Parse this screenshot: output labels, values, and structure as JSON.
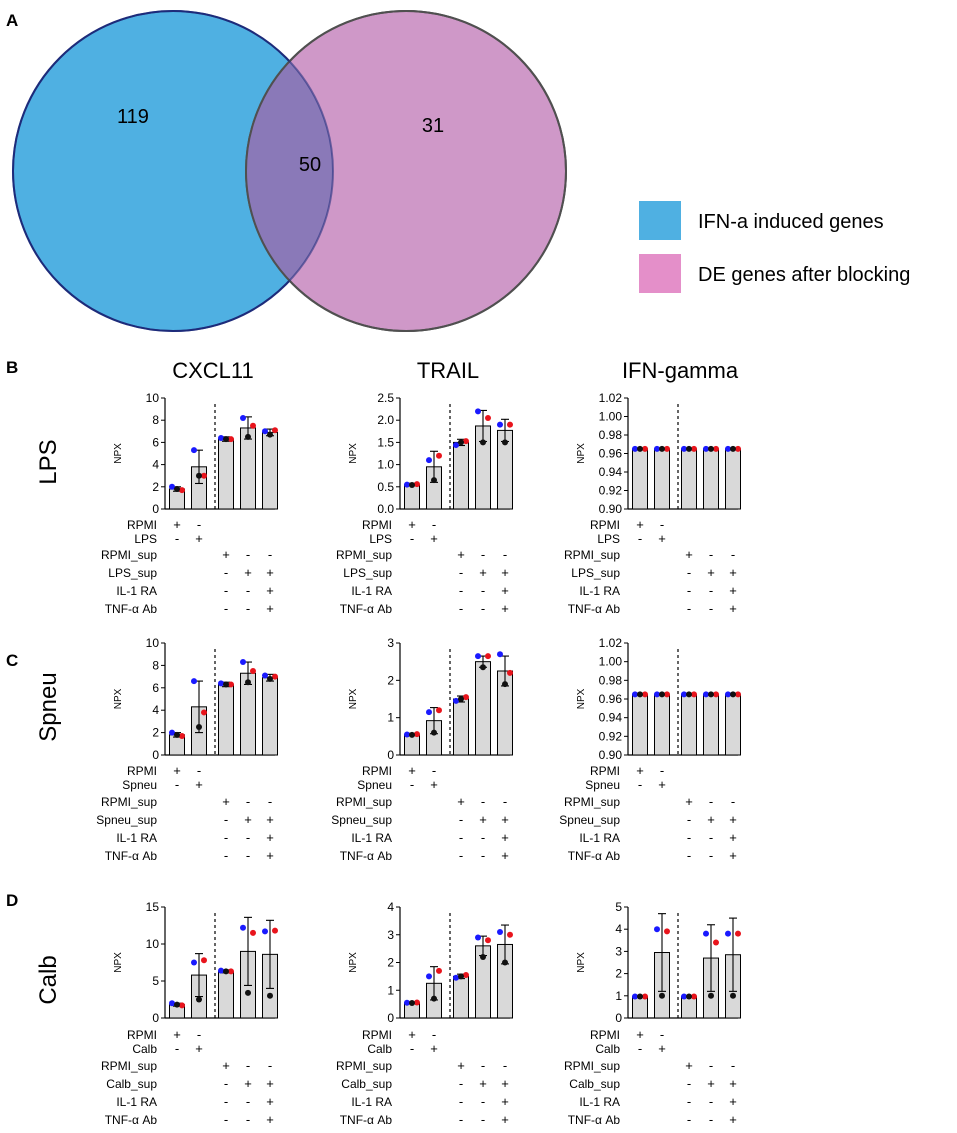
{
  "panel_letters": {
    "A": "A",
    "B": "B",
    "C": "C",
    "D": "D"
  },
  "venn": {
    "left_value": "119",
    "overlap_value": "50",
    "right_value": "31",
    "legend": [
      {
        "label": "IFN-a induced genes",
        "color": "#4fb0e2"
      },
      {
        "label": "DE genes after blocking",
        "color": "#e48fc9"
      }
    ],
    "colors": {
      "left": "#4fb0e2",
      "right": "#cf98c8",
      "overlap": "#8a79b8"
    }
  },
  "column_titles": [
    "CXCL11",
    "TRAIL",
    "IFN-gamma"
  ],
  "row_labels": [
    "LPS",
    "Spneu",
    "Calb"
  ],
  "y_axis_label": "NPX",
  "dot_colors": [
    "#1a1aff",
    "#e8141c",
    "#111111"
  ],
  "chart_data": [
    {
      "id": "B-CXCL11",
      "type": "bar",
      "title": "CXCL11",
      "ylabel": "NPX",
      "ylim": [
        0,
        10
      ],
      "yticks": [
        "0",
        "2",
        "4",
        "6",
        "8",
        "10"
      ],
      "values": [
        1.8,
        3.8,
        6.3,
        7.3,
        6.9
      ],
      "errors": [
        0.2,
        1.5,
        0.2,
        1.0,
        0.3
      ],
      "dots": [
        [
          2.0,
          1.7,
          1.8
        ],
        [
          5.3,
          3.0,
          3.0
        ],
        [
          6.4,
          6.3,
          6.3
        ],
        [
          8.2,
          7.5,
          6.5
        ],
        [
          7.0,
          7.1,
          6.7
        ]
      ]
    },
    {
      "id": "B-TRAIL",
      "type": "bar",
      "title": "TRAIL",
      "ylabel": "NPX",
      "ylim": [
        0,
        2.5
      ],
      "yticks": [
        "0.0",
        "0.5",
        "1.0",
        "1.5",
        "2.0",
        "2.5"
      ],
      "values": [
        0.55,
        0.95,
        1.5,
        1.87,
        1.77
      ],
      "errors": [
        0.03,
        0.35,
        0.07,
        0.35,
        0.25
      ],
      "dots": [
        [
          0.55,
          0.56,
          0.54
        ],
        [
          1.1,
          1.2,
          0.65
        ],
        [
          1.44,
          1.53,
          1.5
        ],
        [
          2.2,
          2.05,
          1.5
        ],
        [
          1.9,
          1.9,
          1.5
        ]
      ]
    },
    {
      "id": "B-IFN-gamma",
      "type": "bar",
      "title": "IFN-gamma",
      "ylabel": "NPX",
      "ylim": [
        0.9,
        1.02
      ],
      "yticks": [
        "0.90",
        "0.92",
        "0.94",
        "0.96",
        "0.98",
        "1.00",
        "1.02"
      ],
      "values": [
        0.965,
        0.965,
        0.965,
        0.965,
        0.965
      ],
      "errors": [
        0,
        0,
        0,
        0,
        0
      ],
      "dots": [
        [
          0.965,
          0.965,
          0.965
        ],
        [
          0.965,
          0.965,
          0.965
        ],
        [
          0.965,
          0.965,
          0.965
        ],
        [
          0.965,
          0.965,
          0.965
        ],
        [
          0.965,
          0.965,
          0.965
        ]
      ]
    },
    {
      "id": "C-CXCL11",
      "type": "bar",
      "title": "CXCL11",
      "ylabel": "NPX",
      "ylim": [
        0,
        10
      ],
      "yticks": [
        "0",
        "2",
        "4",
        "6",
        "8",
        "10"
      ],
      "values": [
        1.8,
        4.3,
        6.3,
        7.3,
        6.9
      ],
      "errors": [
        0.2,
        2.3,
        0.2,
        1.0,
        0.3
      ],
      "dots": [
        [
          2.0,
          1.7,
          1.8
        ],
        [
          6.6,
          3.8,
          2.5
        ],
        [
          6.4,
          6.3,
          6.3
        ],
        [
          8.3,
          7.5,
          6.5
        ],
        [
          7.1,
          7.0,
          6.8
        ]
      ]
    },
    {
      "id": "C-TRAIL",
      "type": "bar",
      "title": "TRAIL",
      "ylabel": "NPX",
      "ylim": [
        0,
        3
      ],
      "yticks": [
        "0",
        "1",
        "2",
        "3"
      ],
      "values": [
        0.55,
        0.92,
        1.5,
        2.5,
        2.25
      ],
      "errors": [
        0.03,
        0.35,
        0.08,
        0.15,
        0.4
      ],
      "dots": [
        [
          0.55,
          0.56,
          0.54
        ],
        [
          1.15,
          1.2,
          0.6
        ],
        [
          1.45,
          1.55,
          1.5
        ],
        [
          2.65,
          2.65,
          2.35
        ],
        [
          2.7,
          2.2,
          1.9
        ]
      ]
    },
    {
      "id": "C-IFN-gamma",
      "type": "bar",
      "title": "IFN-gamma",
      "ylabel": "NPX",
      "ylim": [
        0.9,
        1.02
      ],
      "yticks": [
        "0.90",
        "0.92",
        "0.94",
        "0.96",
        "0.98",
        "1.00",
        "1.02"
      ],
      "values": [
        0.965,
        0.965,
        0.965,
        0.965,
        0.965
      ],
      "errors": [
        0,
        0,
        0,
        0,
        0
      ],
      "dots": [
        [
          0.965,
          0.965,
          0.965
        ],
        [
          0.965,
          0.965,
          0.965
        ],
        [
          0.965,
          0.965,
          0.965
        ],
        [
          0.965,
          0.965,
          0.965
        ],
        [
          0.965,
          0.965,
          0.965
        ]
      ]
    },
    {
      "id": "D-CXCL11",
      "type": "bar",
      "title": "CXCL11",
      "ylabel": "NPX",
      "ylim": [
        0,
        15
      ],
      "yticks": [
        "0",
        "5",
        "10",
        "15"
      ],
      "values": [
        1.8,
        5.8,
        6.3,
        9.0,
        8.6
      ],
      "errors": [
        0.2,
        2.9,
        0.2,
        4.6,
        4.6
      ],
      "dots": [
        [
          2.0,
          1.7,
          1.8
        ],
        [
          7.5,
          7.8,
          2.5
        ],
        [
          6.4,
          6.3,
          6.3
        ],
        [
          12.2,
          11.5,
          3.4
        ],
        [
          11.7,
          11.8,
          3.0
        ]
      ]
    },
    {
      "id": "D-TRAIL",
      "type": "bar",
      "title": "TRAIL",
      "ylabel": "NPX",
      "ylim": [
        0,
        4
      ],
      "yticks": [
        "0",
        "1",
        "2",
        "3",
        "4"
      ],
      "values": [
        0.55,
        1.25,
        1.5,
        2.6,
        2.65
      ],
      "errors": [
        0.03,
        0.6,
        0.08,
        0.35,
        0.7
      ],
      "dots": [
        [
          0.55,
          0.56,
          0.54
        ],
        [
          1.5,
          1.7,
          0.7
        ],
        [
          1.45,
          1.55,
          1.5
        ],
        [
          2.9,
          2.8,
          2.2
        ],
        [
          3.1,
          3.0,
          2.0
        ]
      ]
    },
    {
      "id": "D-IFN-gamma",
      "type": "bar",
      "title": "IFN-gamma",
      "ylabel": "NPX",
      "ylim": [
        0,
        5
      ],
      "yticks": [
        "0",
        "1",
        "2",
        "3",
        "4",
        "5"
      ],
      "values": [
        0.97,
        2.95,
        0.97,
        2.7,
        2.85
      ],
      "errors": [
        0.02,
        1.75,
        0.03,
        1.5,
        1.65
      ],
      "dots": [
        [
          0.97,
          0.97,
          0.97
        ],
        [
          4.0,
          3.9,
          1.0
        ],
        [
          0.97,
          0.97,
          0.97
        ],
        [
          3.8,
          3.4,
          1.0
        ],
        [
          3.8,
          3.8,
          1.0
        ]
      ]
    }
  ],
  "conditions": [
    {
      "rows": [
        {
          "label": "RPMI",
          "signs": [
            "+",
            "-",
            "",
            "",
            ""
          ]
        },
        {
          "label": "LPS",
          "signs": [
            "-",
            "+",
            "",
            "",
            ""
          ]
        },
        {
          "label": "RPMI_sup",
          "signs": [
            "",
            "",
            "+",
            "-",
            "-"
          ]
        },
        {
          "label": "LPS_sup",
          "signs": [
            "",
            "",
            "-",
            "+",
            "+"
          ]
        },
        {
          "label": "IL-1 RA",
          "signs": [
            "",
            "",
            "-",
            "-",
            "+"
          ]
        },
        {
          "label": "TNF-α Ab",
          "signs": [
            "",
            "",
            "-",
            "-",
            "+"
          ]
        }
      ]
    },
    {
      "rows": [
        {
          "label": "RPMI",
          "signs": [
            "+",
            "-",
            "",
            "",
            ""
          ]
        },
        {
          "label": "Spneu",
          "signs": [
            "-",
            "+",
            "",
            "",
            ""
          ]
        },
        {
          "label": "RPMI_sup",
          "signs": [
            "",
            "",
            "+",
            "-",
            "-"
          ]
        },
        {
          "label": "Spneu_sup",
          "signs": [
            "",
            "",
            "-",
            "+",
            "+"
          ]
        },
        {
          "label": "IL-1 RA",
          "signs": [
            "",
            "",
            "-",
            "-",
            "+"
          ]
        },
        {
          "label": "TNF-α Ab",
          "signs": [
            "",
            "",
            "-",
            "-",
            "+"
          ]
        }
      ]
    },
    {
      "rows": [
        {
          "label": "RPMI",
          "signs": [
            "+",
            "-",
            "",
            "",
            ""
          ]
        },
        {
          "label": "Calb",
          "signs": [
            "-",
            "+",
            "",
            "",
            ""
          ]
        },
        {
          "label": "RPMI_sup",
          "signs": [
            "",
            "",
            "+",
            "-",
            "-"
          ]
        },
        {
          "label": "Calb_sup",
          "signs": [
            "",
            "",
            "-",
            "+",
            "+"
          ]
        },
        {
          "label": "IL-1 RA",
          "signs": [
            "",
            "",
            "-",
            "-",
            "+"
          ]
        },
        {
          "label": "TNF-α Ab",
          "signs": [
            "",
            "",
            "-",
            "-",
            "+"
          ]
        }
      ]
    }
  ]
}
